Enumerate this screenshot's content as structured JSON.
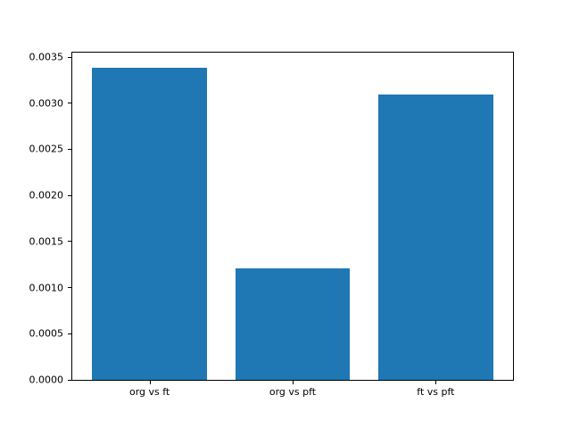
{
  "chart_data": {
    "type": "bar",
    "title": "",
    "xlabel": "",
    "ylabel": "",
    "categories": [
      "org vs ft",
      "org vs pft",
      "ft vs pft"
    ],
    "values": [
      0.00338,
      0.00121,
      0.00309
    ],
    "x": [
      0,
      1,
      2
    ],
    "bar_width": 0.8,
    "xlim": [
      -0.54,
      2.54
    ],
    "ylim": [
      0,
      0.003549
    ],
    "yticks": [
      0.0,
      0.0005,
      0.001,
      0.0015,
      0.002,
      0.0025,
      0.003,
      0.0035
    ],
    "ytick_labels": [
      "0.0000",
      "0.0005",
      "0.0010",
      "0.0015",
      "0.0020",
      "0.0025",
      "0.0030",
      "0.0035"
    ],
    "bar_color": "#1f77b4",
    "background_color": "#ffffff",
    "spine_color": "#000000",
    "grid": false,
    "legend": null
  }
}
